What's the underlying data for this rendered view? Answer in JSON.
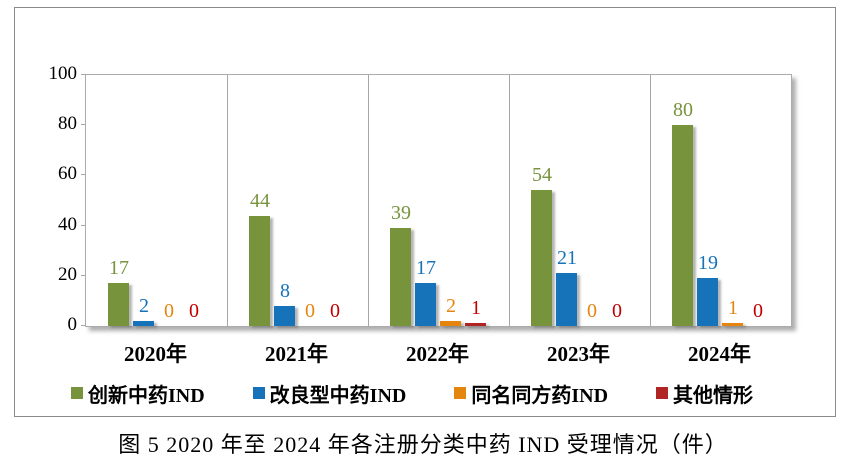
{
  "chart_data": {
    "type": "bar",
    "title": "图 5  2020 年至 2024 年各注册分类中药 IND 受理情况（件）",
    "categories": [
      "2020年",
      "2021年",
      "2022年",
      "2023年",
      "2024年"
    ],
    "series": [
      {
        "name": "创新中药IND",
        "color": "#77933C",
        "label_color": "#77933C",
        "values": [
          17,
          44,
          39,
          54,
          80
        ]
      },
      {
        "name": "改良型中药IND",
        "color": "#1673B9",
        "label_color": "#1673B9",
        "values": [
          2,
          8,
          17,
          21,
          19
        ]
      },
      {
        "name": "同名同方药IND",
        "color": "#E6850E",
        "label_color": "#E6850E",
        "values": [
          0,
          0,
          2,
          0,
          1
        ]
      },
      {
        "name": "其他情形",
        "color": "#B02423",
        "label_color": "#C00000",
        "values": [
          0,
          0,
          1,
          0,
          0
        ]
      }
    ],
    "ylim": [
      0,
      100
    ],
    "yticks": [
      0,
      20,
      40,
      60,
      80,
      100
    ],
    "grid": "vertical-category-separators",
    "legend_position": "bottom",
    "colors": {
      "axis": "#A6A6A6",
      "frame": "#8A8A8A",
      "plot_border": "#ABABAB"
    }
  }
}
